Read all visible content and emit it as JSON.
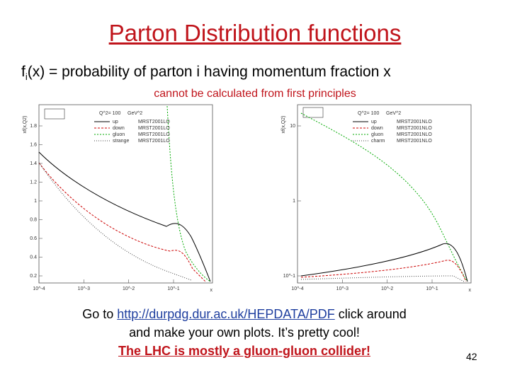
{
  "title": "Parton Distribution functions",
  "definition": {
    "symbol": "f",
    "subscript": "i",
    "text": "(x) = probability of parton i having momentum fraction x"
  },
  "note": "cannot be calculated from first principles",
  "plots": [
    {
      "y_label": "xf(x,Q2)",
      "header": [
        "Q^2= 100",
        "GeV^2"
      ],
      "legend": [
        [
          "up",
          "MRST2001LO"
        ],
        [
          "down",
          "MRST2001LO"
        ],
        [
          "gluon",
          "MRST2001LO"
        ],
        [
          "strange",
          "MRST2001LO"
        ]
      ],
      "y_tick_labels": [
        "1.8",
        "1.6",
        "1.4",
        "1.2",
        "1",
        "0.8",
        "0.6",
        "0.4",
        "0.2"
      ],
      "x_tick_labels": [
        "10^-4",
        "10^-3",
        "10^-2",
        "10^-1"
      ],
      "x_label": "x"
    },
    {
      "y_label": "xf(x,Q2)",
      "header": [
        "Q^2= 100",
        "GeV^2"
      ],
      "legend": [
        [
          "up",
          "MRST2001NLO"
        ],
        [
          "down",
          "MRST2001NLO"
        ],
        [
          "gluon",
          "MRST2001NLO"
        ],
        [
          "charm",
          "MRST2001NLO"
        ]
      ],
      "y_tick_labels": [
        "10",
        "1",
        "10^-1"
      ],
      "x_tick_labels": [
        "10^-4",
        "10^-3",
        "10^-2",
        "10^-1"
      ],
      "x_label": "x"
    }
  ],
  "footer": {
    "line1_before": "Go to ",
    "link": "http://durpdg.dur.ac.uk/HEPDATA/PDF",
    "line1_after": " click around",
    "line2": "and make your own plots.  It’s pretty cool!",
    "line3": "The LHC is mostly a gluon-gluon collider!"
  },
  "page_number": "42"
}
